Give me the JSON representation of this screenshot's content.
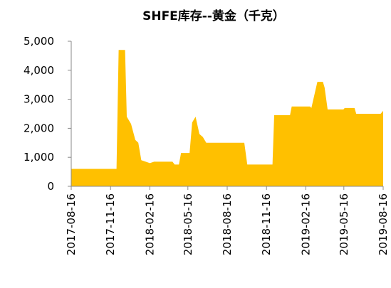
{
  "chart_data": {
    "type": "area",
    "title": "SHFE库存--黄金（千克）",
    "color": "#FFC000",
    "x": [
      "2017-08-16",
      "2017-11-30",
      "2017-12-05",
      "2017-12-20",
      "2017-12-24",
      "2018-01-03",
      "2018-01-13",
      "2018-01-20",
      "2018-01-27",
      "2018-02-16",
      "2018-02-26",
      "2018-04-10",
      "2018-04-15",
      "2018-04-25",
      "2018-04-30",
      "2018-05-20",
      "2018-05-26",
      "2018-06-03",
      "2018-06-12",
      "2018-06-20",
      "2018-06-28",
      "2018-09-25",
      "2018-10-02",
      "2018-11-30",
      "2018-12-04",
      "2019-01-10",
      "2019-01-14",
      "2019-02-26",
      "2019-03-01",
      "2019-03-15",
      "2019-03-28",
      "2019-04-01",
      "2019-04-08",
      "2019-05-15",
      "2019-05-18",
      "2019-06-10",
      "2019-06-14",
      "2019-08-10",
      "2019-08-16"
    ],
    "values": [
      600,
      600,
      4700,
      4700,
      2400,
      2150,
      1600,
      1500,
      900,
      800,
      850,
      850,
      750,
      750,
      1150,
      1150,
      2200,
      2400,
      1800,
      1700,
      1500,
      1500,
      750,
      750,
      2450,
      2450,
      2750,
      2750,
      2700,
      3600,
      3600,
      3400,
      2650,
      2650,
      2700,
      2700,
      2500,
      2500,
      2600
    ],
    "xlim": [
      "2017-08-16",
      "2019-08-16"
    ],
    "xticks": [
      "2017-08-16",
      "2017-11-16",
      "2018-02-16",
      "2018-05-16",
      "2018-08-16",
      "2018-11-16",
      "2019-02-16",
      "2019-05-16",
      "2019-08-16"
    ],
    "ylim": [
      0,
      5000
    ],
    "yticks": [
      0,
      {
        "value": 1000,
        "label": "1,000"
      },
      {
        "value": 2000,
        "label": "2,000"
      },
      {
        "value": 3000,
        "label": "3,000"
      },
      {
        "value": 4000,
        "label": "4,000"
      },
      {
        "value": 5000,
        "label": "5,000"
      }
    ]
  }
}
